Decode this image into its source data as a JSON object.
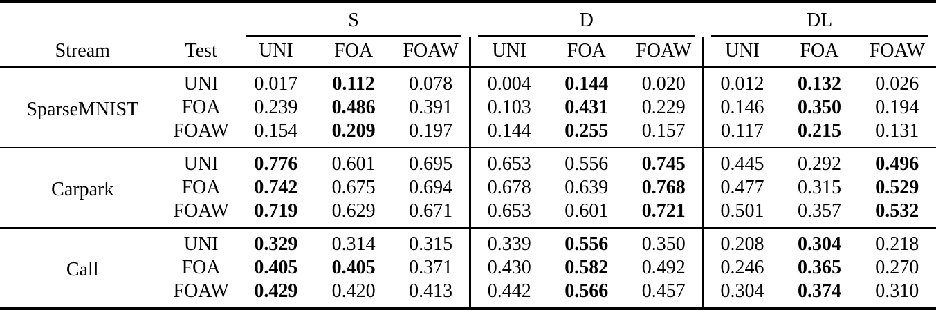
{
  "colors": {
    "text": "#000000",
    "background": "#ffffff",
    "rule": "#000000"
  },
  "table": {
    "stream_header": "Stream",
    "test_header": "Test",
    "groups": [
      {
        "label": "S",
        "subcols": [
          "UNI",
          "FOA",
          "FOAW"
        ]
      },
      {
        "label": "D",
        "subcols": [
          "UNI",
          "FOA",
          "FOAW"
        ]
      },
      {
        "label": "DL",
        "subcols": [
          "UNI",
          "FOA",
          "FOAW"
        ]
      }
    ],
    "sections": [
      {
        "stream": "SparseMNIST",
        "rows": [
          {
            "test": "UNI",
            "values": [
              "0.017",
              "0.112",
              "0.078",
              "0.004",
              "0.144",
              "0.020",
              "0.012",
              "0.132",
              "0.026"
            ],
            "bold": [
              0,
              1,
              0,
              0,
              1,
              0,
              0,
              1,
              0
            ]
          },
          {
            "test": "FOA",
            "values": [
              "0.239",
              "0.486",
              "0.391",
              "0.103",
              "0.431",
              "0.229",
              "0.146",
              "0.350",
              "0.194"
            ],
            "bold": [
              0,
              1,
              0,
              0,
              1,
              0,
              0,
              1,
              0
            ]
          },
          {
            "test": "FOAW",
            "values": [
              "0.154",
              "0.209",
              "0.197",
              "0.144",
              "0.255",
              "0.157",
              "0.117",
              "0.215",
              "0.131"
            ],
            "bold": [
              0,
              1,
              0,
              0,
              1,
              0,
              0,
              1,
              0
            ]
          }
        ]
      },
      {
        "stream": "Carpark",
        "rows": [
          {
            "test": "UNI",
            "values": [
              "0.776",
              "0.601",
              "0.695",
              "0.653",
              "0.556",
              "0.745",
              "0.445",
              "0.292",
              "0.496"
            ],
            "bold": [
              1,
              0,
              0,
              0,
              0,
              1,
              0,
              0,
              1
            ]
          },
          {
            "test": "FOA",
            "values": [
              "0.742",
              "0.675",
              "0.694",
              "0.678",
              "0.639",
              "0.768",
              "0.477",
              "0.315",
              "0.529"
            ],
            "bold": [
              1,
              0,
              0,
              0,
              0,
              1,
              0,
              0,
              1
            ]
          },
          {
            "test": "FOAW",
            "values": [
              "0.719",
              "0.629",
              "0.671",
              "0.653",
              "0.601",
              "0.721",
              "0.501",
              "0.357",
              "0.532"
            ],
            "bold": [
              1,
              0,
              0,
              0,
              0,
              1,
              0,
              0,
              1
            ]
          }
        ]
      },
      {
        "stream": "Call",
        "rows": [
          {
            "test": "UNI",
            "values": [
              "0.329",
              "0.314",
              "0.315",
              "0.339",
              "0.556",
              "0.350",
              "0.208",
              "0.304",
              "0.218"
            ],
            "bold": [
              1,
              0,
              0,
              0,
              1,
              0,
              0,
              1,
              0
            ]
          },
          {
            "test": "FOA",
            "values": [
              "0.405",
              "0.405",
              "0.371",
              "0.430",
              "0.582",
              "0.492",
              "0.246",
              "0.365",
              "0.270"
            ],
            "bold": [
              1,
              1,
              0,
              0,
              1,
              0,
              0,
              1,
              0
            ]
          },
          {
            "test": "FOAW",
            "values": [
              "0.429",
              "0.420",
              "0.413",
              "0.442",
              "0.566",
              "0.457",
              "0.304",
              "0.374",
              "0.310"
            ],
            "bold": [
              1,
              0,
              0,
              0,
              1,
              0,
              0,
              1,
              0
            ]
          }
        ]
      }
    ]
  }
}
